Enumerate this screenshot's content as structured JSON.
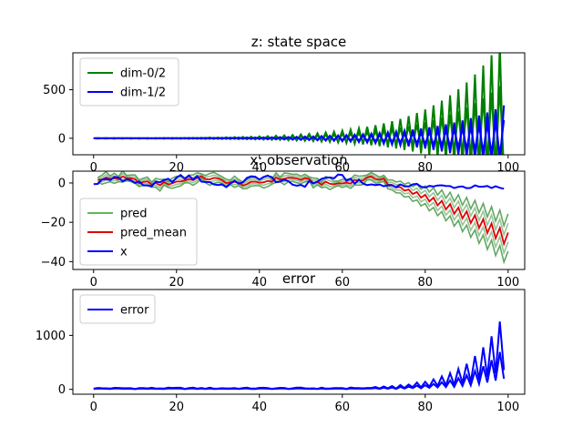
{
  "chart_data": [
    {
      "type": "line",
      "title": "z: state space",
      "xlabel": "",
      "ylabel": "",
      "xlim": [
        -5,
        104
      ],
      "ylim": [
        -170,
        880
      ],
      "xticks": [
        0,
        20,
        40,
        60,
        80,
        100
      ],
      "yticks": [
        0,
        500
      ],
      "grid": false,
      "legend_placement": "upper-left",
      "legend": [
        {
          "label": "dim-0/2",
          "color": "#008000"
        },
        {
          "label": "dim-1/2",
          "color": "#0000ff"
        }
      ],
      "series": [
        {
          "name": "dim-0/2",
          "color": "#008000",
          "kind": "oscillating",
          "n": 100,
          "a": 1.2,
          "r": 1.068,
          "phase": 0,
          "offset": 0
        },
        {
          "name": "dim-1/2",
          "color": "#0000ff",
          "kind": "oscillating",
          "n": 100,
          "a": 0.8,
          "r": 1.063,
          "phase": 1,
          "offset": 0
        }
      ]
    },
    {
      "type": "line",
      "title": "x: observation",
      "xlabel": "",
      "ylabel": "",
      "xlim": [
        -5,
        104
      ],
      "ylim": [
        -44,
        6
      ],
      "xticks": [
        0,
        20,
        40,
        60,
        80,
        100
      ],
      "yticks": [
        0,
        -20,
        -40
      ],
      "grid": false,
      "legend_placement": "lower-left",
      "legend": [
        {
          "label": "pred",
          "color": "#5cb85c"
        },
        {
          "label": "pred_mean",
          "color": "#e00000"
        },
        {
          "label": "x",
          "color": "#0000ff"
        }
      ],
      "series": [
        {
          "name": "pred",
          "color": "#2e8b2e",
          "kind": "observation-pred",
          "n": 101,
          "start": 1
        },
        {
          "name": "pred_mean",
          "color": "#e00000",
          "kind": "observation-mean",
          "n": 101,
          "start": 1
        },
        {
          "name": "x",
          "color": "#0000ff",
          "kind": "observation-x",
          "n": 100,
          "start": 0
        }
      ]
    },
    {
      "type": "line",
      "title": "error",
      "xlabel": "",
      "ylabel": "",
      "xlim": [
        -5,
        104
      ],
      "ylim": [
        -90,
        1850
      ],
      "xticks": [
        0,
        20,
        40,
        60,
        80,
        100
      ],
      "yticks": [
        0,
        1000
      ],
      "grid": false,
      "legend_placement": "upper-left",
      "legend": [
        {
          "label": "error",
          "color": "#0000ff"
        }
      ],
      "series": [
        {
          "name": "error",
          "color": "#0000ff",
          "kind": "error",
          "n": 100
        }
      ]
    }
  ]
}
